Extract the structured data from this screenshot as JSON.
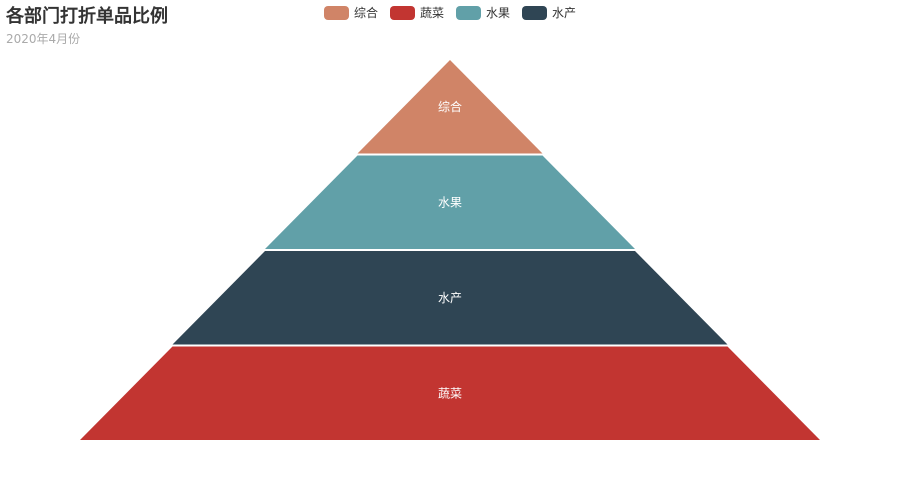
{
  "chart_data": {
    "type": "funnel",
    "title": "各部门打折单品比例",
    "subtitle": "2020年4月份",
    "sort": "ascending",
    "legend": [
      "综合",
      "蔬菜",
      "水果",
      "水产"
    ],
    "colors": {
      "综合": "#d08467",
      "蔬菜": "#c23531",
      "水果": "#61a0a8",
      "水产": "#2f4554"
    },
    "stages": [
      {
        "name": "综合",
        "value": 20
      },
      {
        "name": "水果",
        "value": 40
      },
      {
        "name": "水产",
        "value": 60
      },
      {
        "name": "蔬菜",
        "value": 80
      }
    ],
    "max_value": 80
  }
}
